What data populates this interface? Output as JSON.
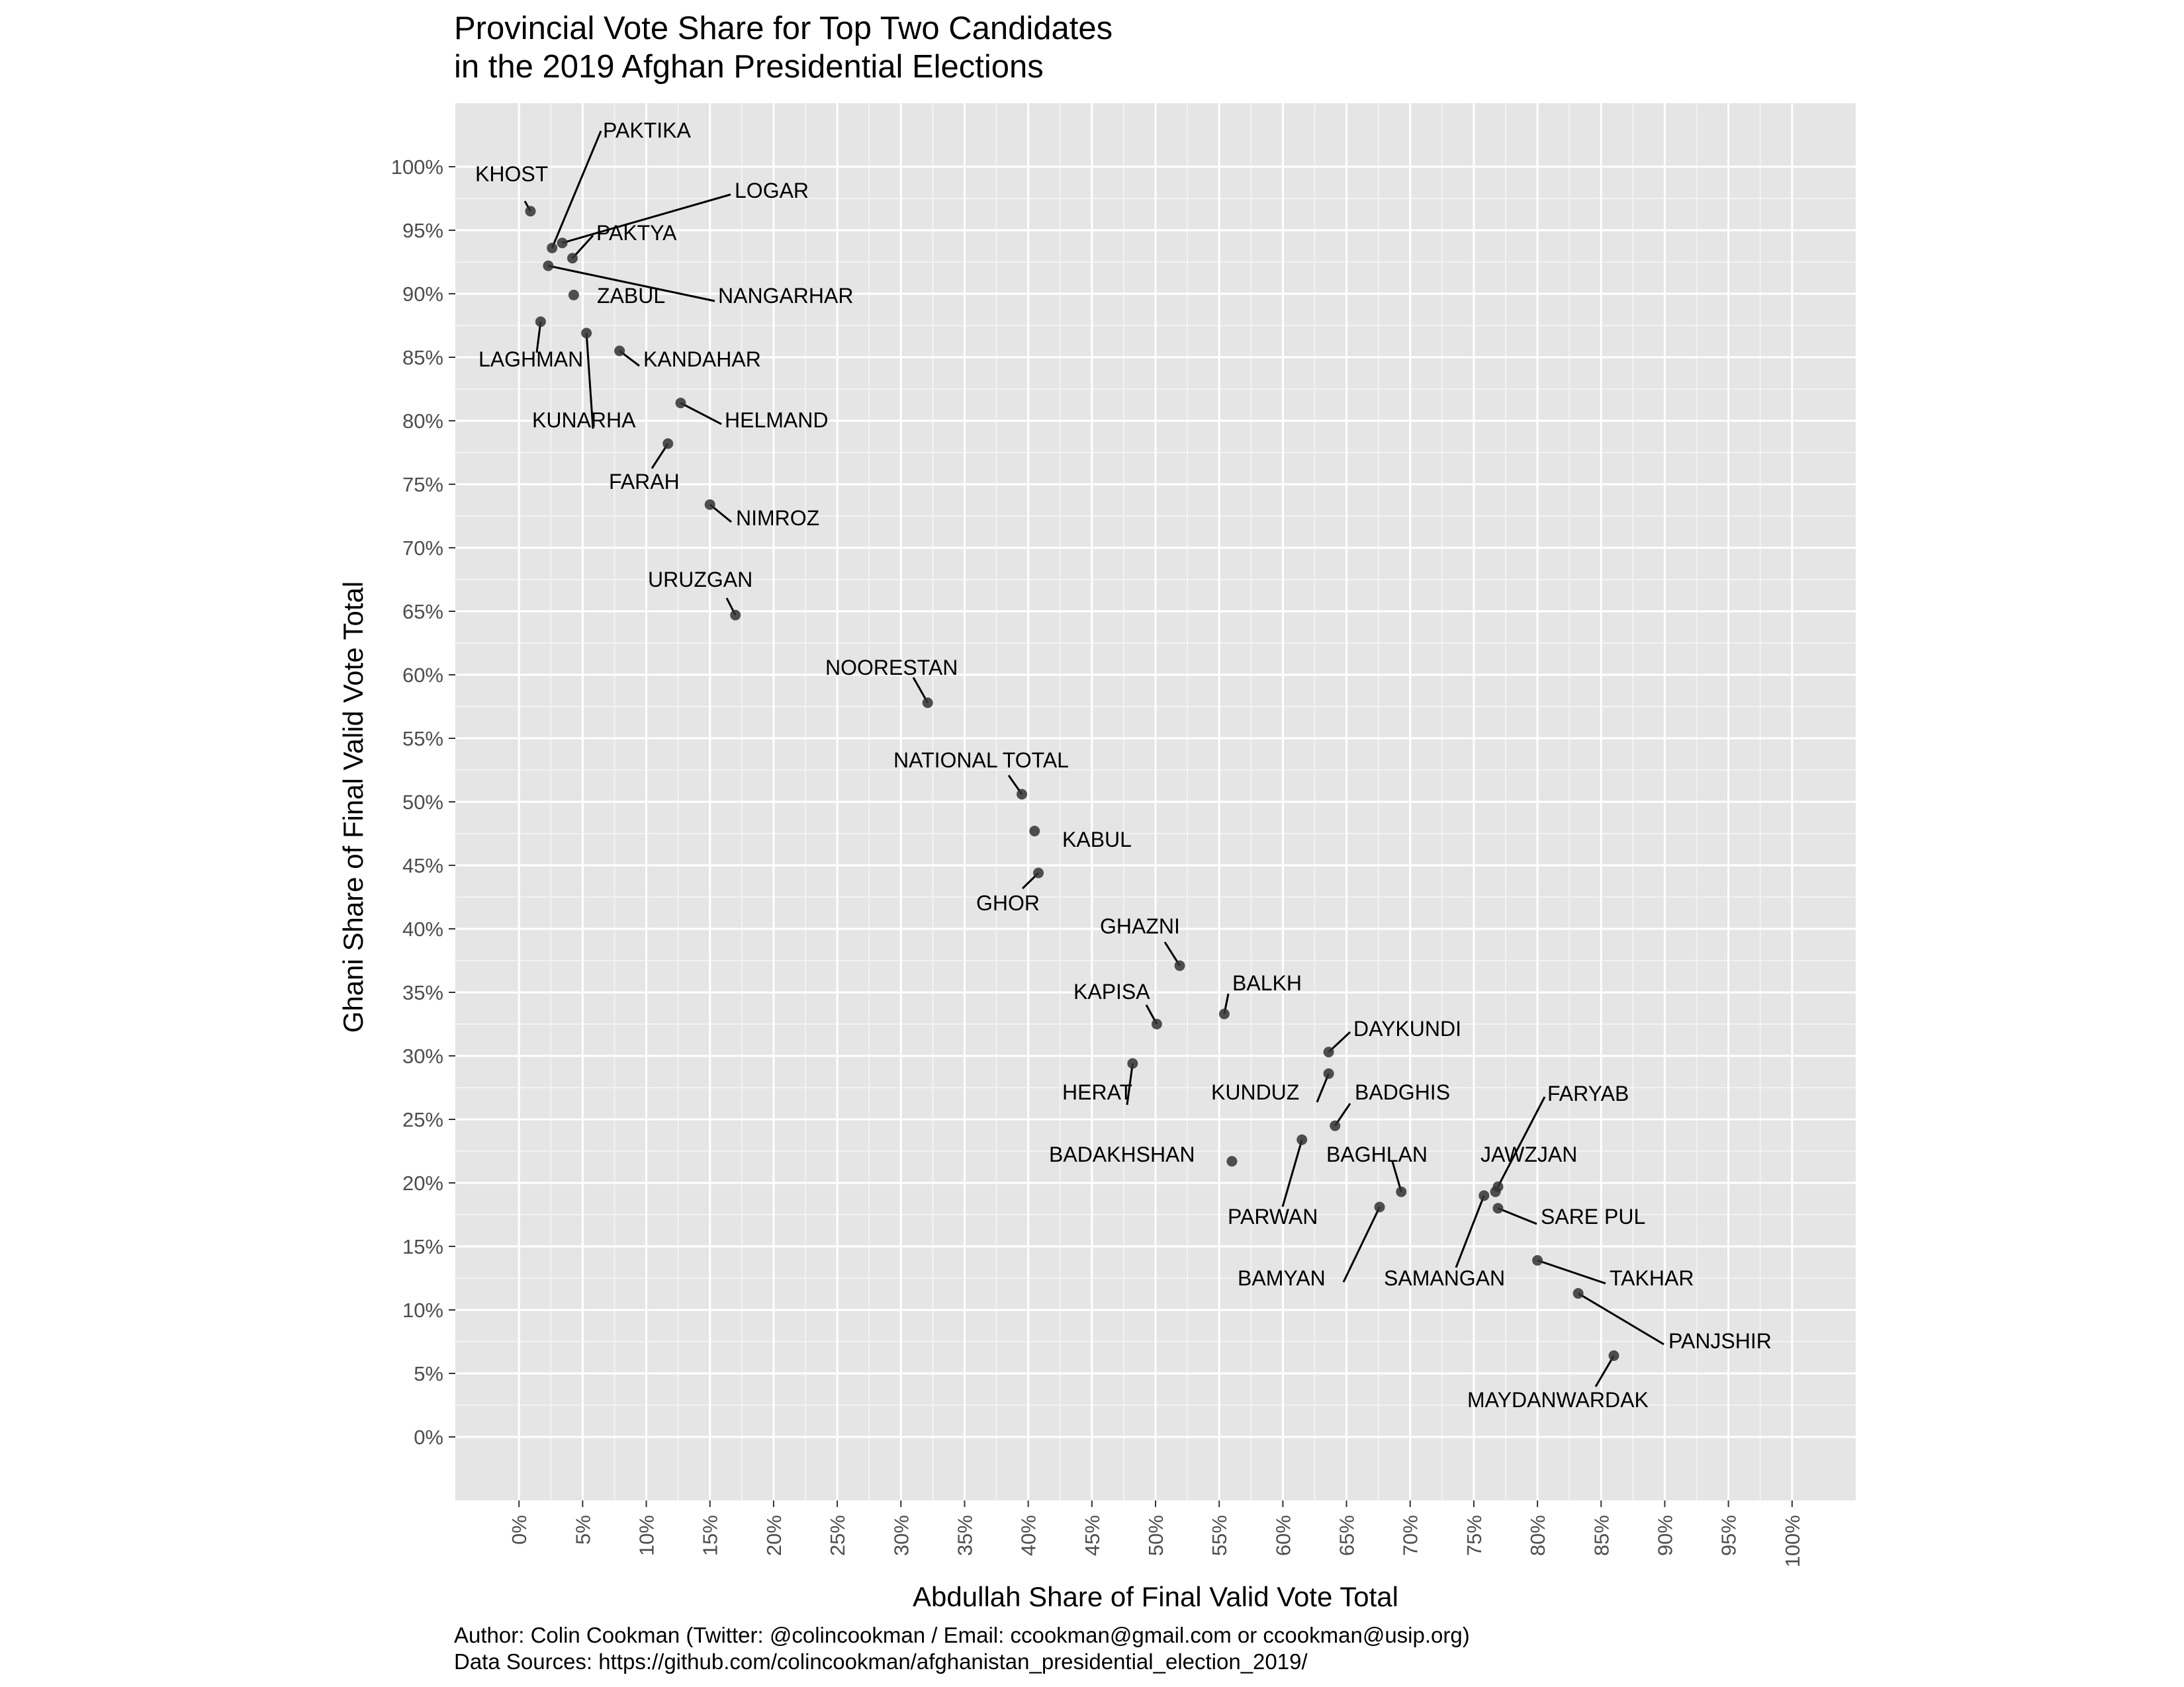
{
  "title_lines": [
    "Provincial Vote Share for Top Two Candidates",
    "in the 2019 Afghan Presidential Elections"
  ],
  "caption_lines": [
    "Author: Colin Cookman (Twitter: @colincookman / Email: ccookman@gmail.com or ccookman@usip.org)",
    "Data Sources: https://github.com/colincookman/afghanistan_presidential_election_2019/"
  ],
  "colors": {
    "panel": "#e5e5e5",
    "grid_major": "#ffffff",
    "point": "#333333",
    "tick_text": "#4d4d4d"
  },
  "chart_data": {
    "type": "scatter",
    "title": "Provincial Vote Share for Top Two Candidates in the 2019 Afghan Presidential Elections",
    "xlabel": "Abdullah Share of Final Valid Vote Total",
    "ylabel": "Ghani Share of Final Valid Vote Total",
    "xlim": [
      -5,
      105
    ],
    "ylim": [
      -5,
      105
    ],
    "x_ticks": [
      0,
      5,
      10,
      15,
      20,
      25,
      30,
      35,
      40,
      45,
      50,
      55,
      60,
      65,
      70,
      75,
      80,
      85,
      90,
      95,
      100
    ],
    "y_ticks": [
      0,
      5,
      10,
      15,
      20,
      25,
      30,
      35,
      40,
      45,
      50,
      55,
      60,
      65,
      70,
      75,
      80,
      85,
      90,
      95,
      100
    ],
    "tick_suffix": "%",
    "grid": true,
    "legend": "none",
    "points": [
      {
        "label": "KHOST",
        "x": 0.9,
        "y": 96.5
      },
      {
        "label": "PAKTIKA",
        "x": 2.6,
        "y": 93.6
      },
      {
        "label": "LOGAR",
        "x": 3.4,
        "y": 94.0
      },
      {
        "label": "PAKTYA",
        "x": 4.2,
        "y": 92.8
      },
      {
        "label": "NANGARHAR",
        "x": 2.3,
        "y": 92.2
      },
      {
        "label": "ZABUL",
        "x": 4.3,
        "y": 89.9
      },
      {
        "label": "LAGHMAN",
        "x": 1.7,
        "y": 87.8
      },
      {
        "label": "KUNARHA",
        "x": 5.3,
        "y": 86.9
      },
      {
        "label": "KANDAHAR",
        "x": 7.9,
        "y": 85.5
      },
      {
        "label": "HELMAND",
        "x": 12.7,
        "y": 81.4
      },
      {
        "label": "FARAH",
        "x": 11.7,
        "y": 78.2
      },
      {
        "label": "NIMROZ",
        "x": 15.0,
        "y": 73.4
      },
      {
        "label": "URUZGAN",
        "x": 17.0,
        "y": 64.7
      },
      {
        "label": "NOORESTAN",
        "x": 32.1,
        "y": 57.8
      },
      {
        "label": "NATIONAL TOTAL",
        "x": 39.5,
        "y": 50.6
      },
      {
        "label": "KABUL",
        "x": 40.5,
        "y": 47.7
      },
      {
        "label": "GHOR",
        "x": 40.8,
        "y": 44.4
      },
      {
        "label": "GHAZNI",
        "x": 51.9,
        "y": 37.1
      },
      {
        "label": "BALKH",
        "x": 55.4,
        "y": 33.3
      },
      {
        "label": "KAPISA",
        "x": 50.1,
        "y": 32.5
      },
      {
        "label": "DAYKUNDI",
        "x": 63.6,
        "y": 30.3
      },
      {
        "label": "HERAT",
        "x": 48.2,
        "y": 29.4
      },
      {
        "label": "KUNDUZ",
        "x": 63.6,
        "y": 28.6
      },
      {
        "label": "BADGHIS",
        "x": 64.1,
        "y": 24.5
      },
      {
        "label": "PARWAN",
        "x": 61.5,
        "y": 23.4
      },
      {
        "label": "BADAKHSHAN",
        "x": 56.0,
        "y": 21.7
      },
      {
        "label": "BAGHLAN",
        "x": 69.3,
        "y": 19.3
      },
      {
        "label": "FARYAB",
        "x": 76.9,
        "y": 19.7
      },
      {
        "label": "JAWZJAN",
        "x": 76.7,
        "y": 19.3
      },
      {
        "label": "SAMANGAN",
        "x": 75.8,
        "y": 19.0
      },
      {
        "label": "BAMYAN",
        "x": 67.6,
        "y": 18.1
      },
      {
        "label": "SARE PUL",
        "x": 76.9,
        "y": 18.0
      },
      {
        "label": "TAKHAR",
        "x": 80.0,
        "y": 13.9
      },
      {
        "label": "PANJSHIR",
        "x": 83.2,
        "y": 11.3
      },
      {
        "label": "MAYDANWARDAK",
        "x": 86.0,
        "y": 6.4
      }
    ]
  }
}
